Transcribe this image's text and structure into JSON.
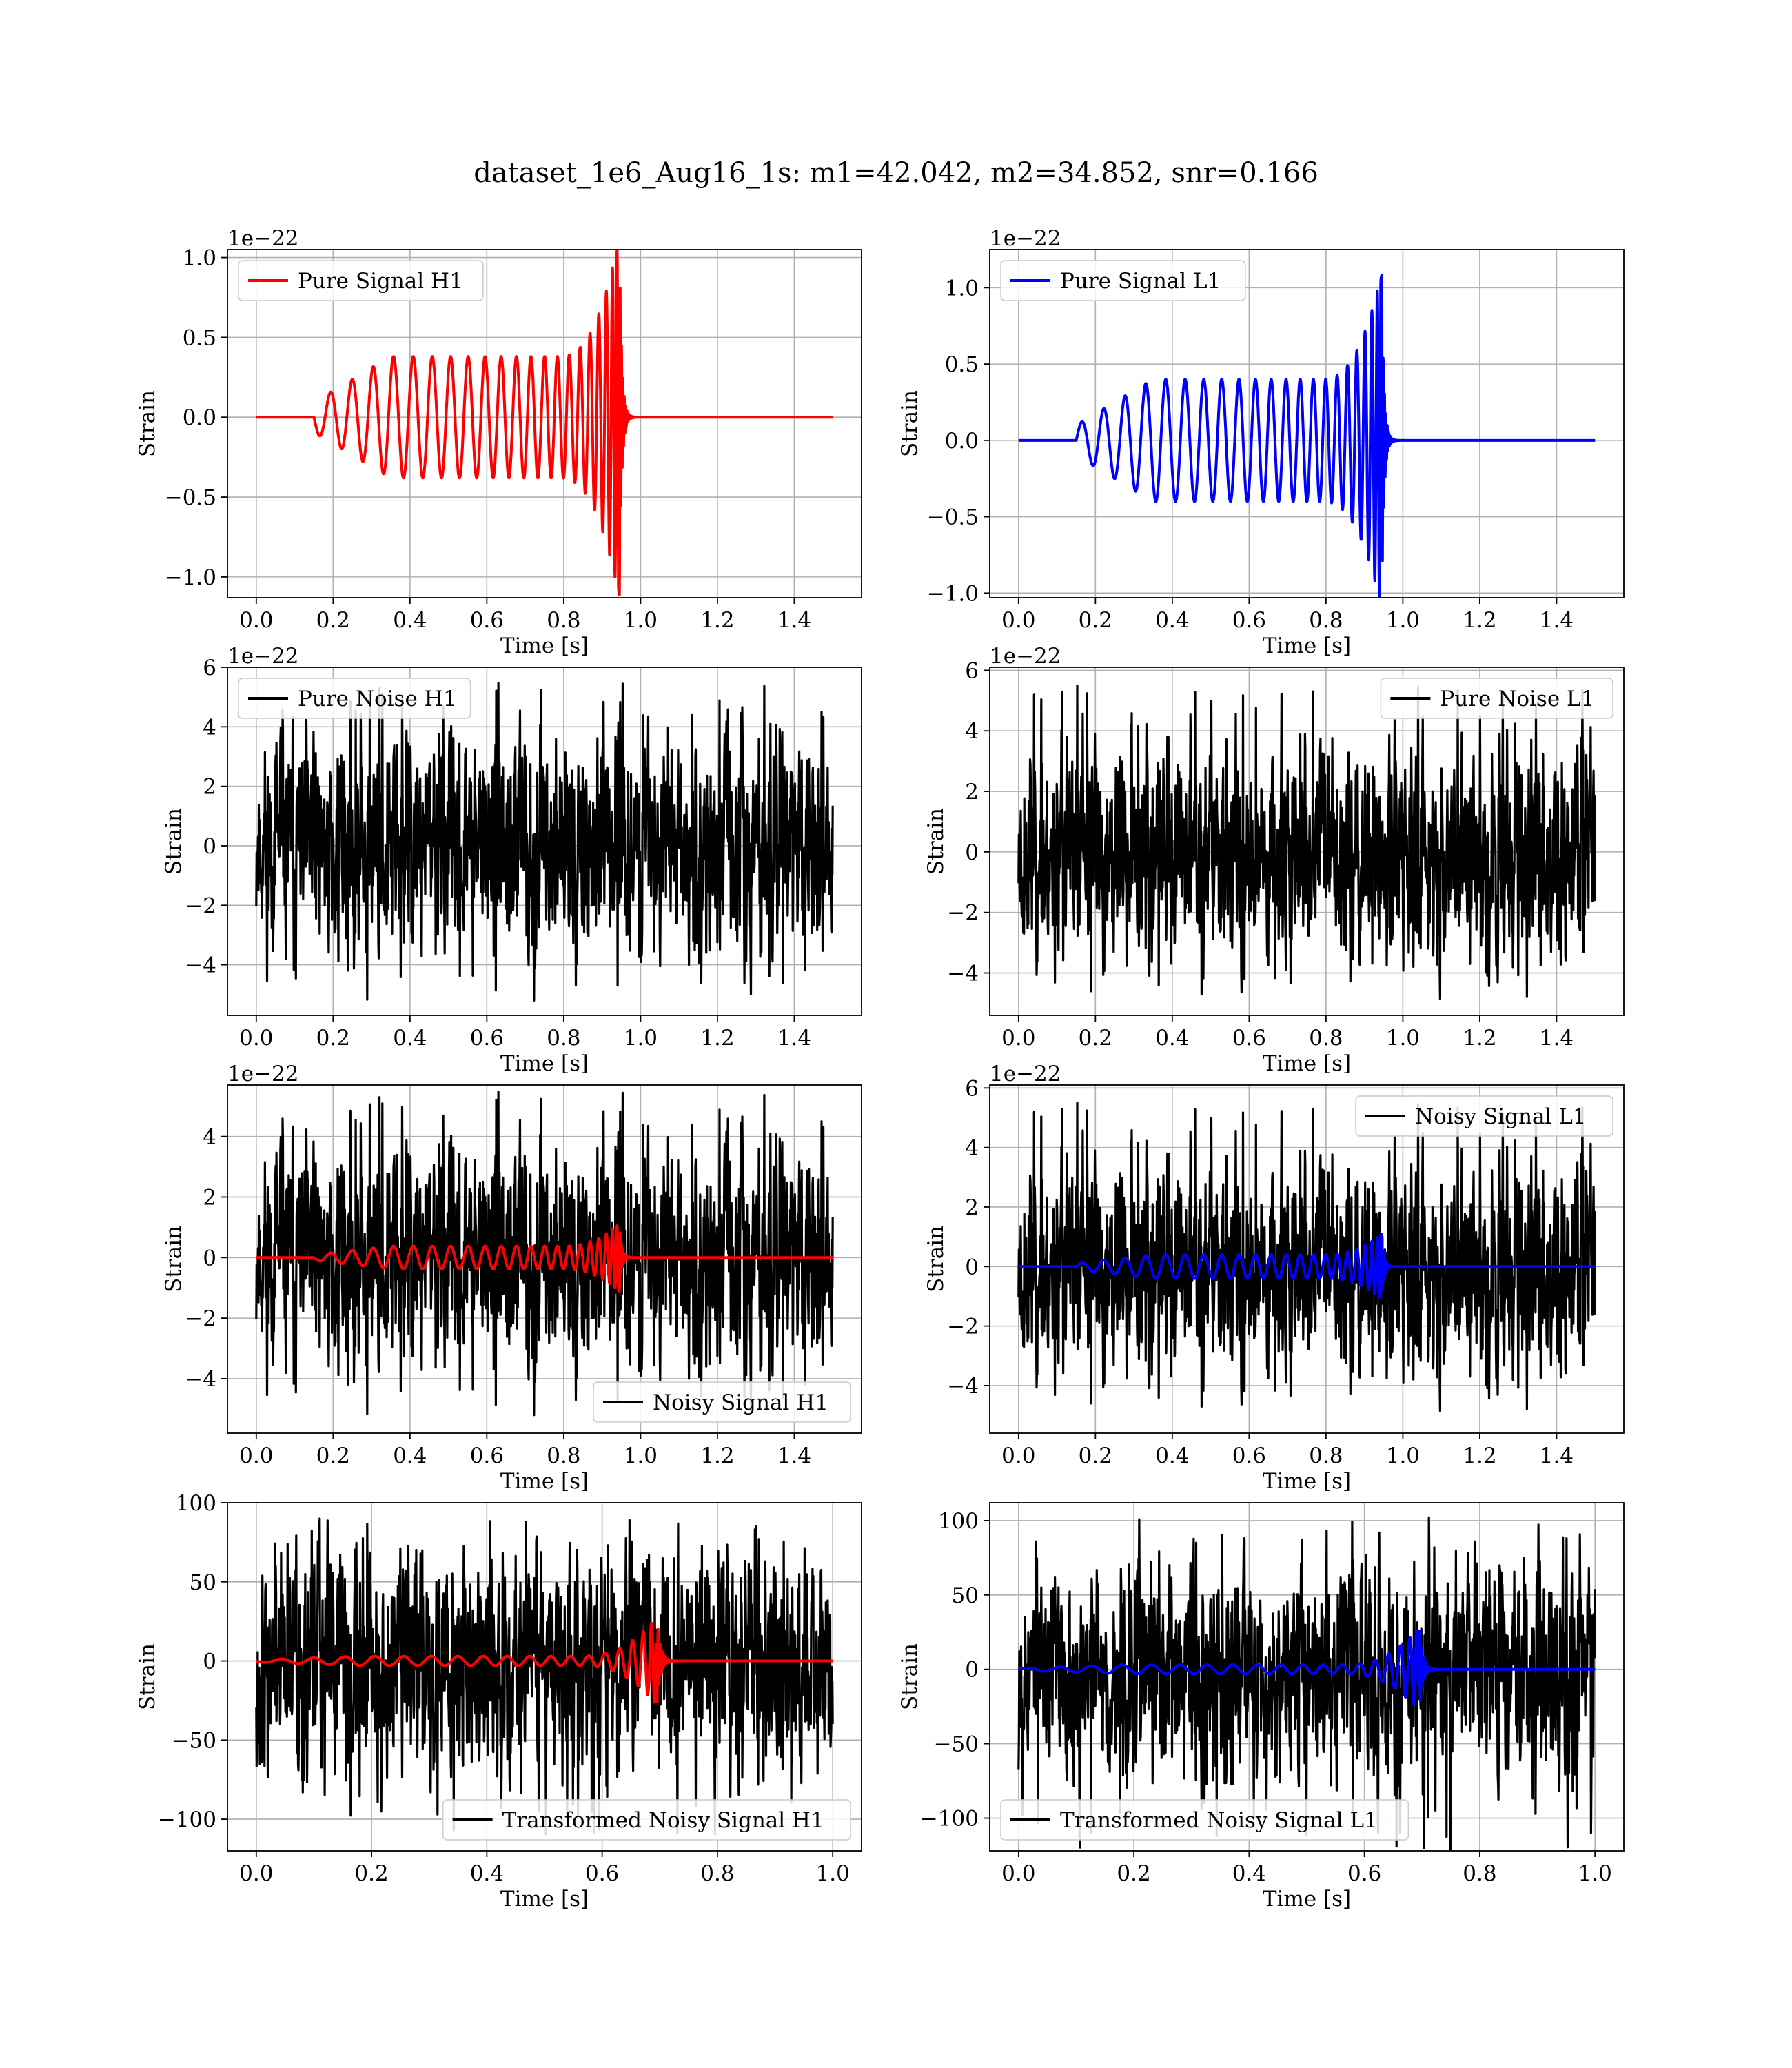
{
  "suptitle": "dataset_1e6_Aug16_1s: m1=42.042, m2=34.852, snr=0.166",
  "colors": {
    "h1_signal": "#ff0000",
    "l1_signal": "#0000ff",
    "noise": "#000000",
    "grid": "#b0b0b0"
  },
  "chart_data": [
    {
      "type": "line",
      "xlabel": "Time [s]",
      "ylabel": "Strain",
      "offset_text": "1e−22",
      "xlim": [
        -0.075,
        1.575
      ],
      "ylim": [
        -1.13,
        1.05
      ],
      "xticks": [
        0.0,
        0.2,
        0.4,
        0.6,
        0.8,
        1.0,
        1.2,
        1.4
      ],
      "xtick_labels": [
        "0.0",
        "0.2",
        "0.4",
        "0.6",
        "0.8",
        "1.0",
        "1.2",
        "1.4"
      ],
      "yticks": [
        -1.0,
        -0.5,
        0.0,
        0.5,
        1.0
      ],
      "ytick_labels": [
        "−1.0",
        "−0.5",
        "0.0",
        "0.5",
        "1.0"
      ],
      "legend_loc": "upper-left",
      "grid": true,
      "series": [
        {
          "name": "Pure Signal H1",
          "kind": "chirp",
          "color": "#ff0000",
          "t_start": 0.15,
          "t_merge": 0.945,
          "t_end": 1.5,
          "peak_amp": 1.13,
          "inspiral_amp": 0.38,
          "sign": -1
        }
      ]
    },
    {
      "type": "line",
      "xlabel": "Time [s]",
      "ylabel": "Strain",
      "offset_text": "1e−22",
      "xlim": [
        -0.075,
        1.575
      ],
      "ylim": [
        -1.03,
        1.25
      ],
      "xticks": [
        0.0,
        0.2,
        0.4,
        0.6,
        0.8,
        1.0,
        1.2,
        1.4
      ],
      "xtick_labels": [
        "0.0",
        "0.2",
        "0.4",
        "0.6",
        "0.8",
        "1.0",
        "1.2",
        "1.4"
      ],
      "yticks": [
        -1.0,
        -0.5,
        0.0,
        0.5,
        1.0
      ],
      "ytick_labels": [
        "−1.0",
        "−0.5",
        "0.0",
        "0.5",
        "1.0"
      ],
      "legend_loc": "upper-left",
      "grid": true,
      "series": [
        {
          "name": "Pure Signal L1",
          "kind": "chirp",
          "color": "#0000ff",
          "t_start": 0.15,
          "t_merge": 0.945,
          "t_end": 1.5,
          "peak_amp": 1.1,
          "inspiral_amp": 0.4,
          "sign": 1
        }
      ]
    },
    {
      "type": "line",
      "xlabel": "Time [s]",
      "ylabel": "Strain",
      "offset_text": "1e−22",
      "xlim": [
        -0.075,
        1.575
      ],
      "ylim": [
        -5.7,
        6.0
      ],
      "xticks": [
        0.0,
        0.2,
        0.4,
        0.6,
        0.8,
        1.0,
        1.2,
        1.4
      ],
      "xtick_labels": [
        "0.0",
        "0.2",
        "0.4",
        "0.6",
        "0.8",
        "1.0",
        "1.2",
        "1.4"
      ],
      "yticks": [
        -4,
        -2,
        0,
        2,
        4,
        6
      ],
      "ytick_labels": [
        "−4",
        "−2",
        "0",
        "2",
        "4",
        "6"
      ],
      "legend_loc": "upper-left",
      "grid": true,
      "series": [
        {
          "name": "Pure Noise H1",
          "kind": "noise",
          "color": "#000000",
          "t_start": 0.0,
          "t_end": 1.5,
          "noise_amp": 1.6,
          "min": -5.2,
          "max": 5.5,
          "seed": 11
        }
      ]
    },
    {
      "type": "line",
      "xlabel": "Time [s]",
      "ylabel": "Strain",
      "offset_text": "1e−22",
      "xlim": [
        -0.075,
        1.575
      ],
      "ylim": [
        -5.4,
        6.1
      ],
      "xticks": [
        0.0,
        0.2,
        0.4,
        0.6,
        0.8,
        1.0,
        1.2,
        1.4
      ],
      "xtick_labels": [
        "0.0",
        "0.2",
        "0.4",
        "0.6",
        "0.8",
        "1.0",
        "1.2",
        "1.4"
      ],
      "yticks": [
        -4,
        -2,
        0,
        2,
        4,
        6
      ],
      "ytick_labels": [
        "−4",
        "−2",
        "0",
        "2",
        "4",
        "6"
      ],
      "legend_loc": "upper-right",
      "grid": true,
      "series": [
        {
          "name": "Pure Noise L1",
          "kind": "noise",
          "color": "#000000",
          "t_start": 0.0,
          "t_end": 1.5,
          "noise_amp": 1.6,
          "min": -4.9,
          "max": 5.5,
          "seed": 23
        }
      ]
    },
    {
      "type": "line",
      "xlabel": "Time [s]",
      "ylabel": "Strain",
      "offset_text": "1e−22",
      "xlim": [
        -0.075,
        1.575
      ],
      "ylim": [
        -5.8,
        5.7
      ],
      "xticks": [
        0.0,
        0.2,
        0.4,
        0.6,
        0.8,
        1.0,
        1.2,
        1.4
      ],
      "xtick_labels": [
        "0.0",
        "0.2",
        "0.4",
        "0.6",
        "0.8",
        "1.0",
        "1.2",
        "1.4"
      ],
      "yticks": [
        -4,
        -2,
        0,
        2,
        4
      ],
      "ytick_labels": [
        "−4",
        "−2",
        "0",
        "2",
        "4"
      ],
      "legend_loc": "lower-right",
      "grid": true,
      "series": [
        {
          "name": "Noisy Signal H1",
          "kind": "noise",
          "color": "#000000",
          "t_start": 0.0,
          "t_end": 1.5,
          "noise_amp": 1.6,
          "min": -5.2,
          "max": 5.5,
          "seed": 11
        },
        {
          "name": "",
          "kind": "chirp",
          "color": "#ff0000",
          "t_start": 0.15,
          "t_merge": 0.945,
          "t_end": 1.5,
          "peak_amp": 1.13,
          "inspiral_amp": 0.38,
          "sign": -1
        }
      ]
    },
    {
      "type": "line",
      "xlabel": "Time [s]",
      "ylabel": "Strain",
      "offset_text": "1e−22",
      "xlim": [
        -0.075,
        1.575
      ],
      "ylim": [
        -5.6,
        6.1
      ],
      "xticks": [
        0.0,
        0.2,
        0.4,
        0.6,
        0.8,
        1.0,
        1.2,
        1.4
      ],
      "xtick_labels": [
        "0.0",
        "0.2",
        "0.4",
        "0.6",
        "0.8",
        "1.0",
        "1.2",
        "1.4"
      ],
      "yticks": [
        -4,
        -2,
        0,
        2,
        4,
        6
      ],
      "ytick_labels": [
        "−4",
        "−2",
        "0",
        "2",
        "4",
        "6"
      ],
      "legend_loc": "upper-right",
      "grid": true,
      "series": [
        {
          "name": "Noisy Signal L1",
          "kind": "noise",
          "color": "#000000",
          "t_start": 0.0,
          "t_end": 1.5,
          "noise_amp": 1.6,
          "min": -4.9,
          "max": 5.5,
          "seed": 23
        },
        {
          "name": "",
          "kind": "chirp",
          "color": "#0000ff",
          "t_start": 0.15,
          "t_merge": 0.945,
          "t_end": 1.5,
          "peak_amp": 1.1,
          "inspiral_amp": 0.4,
          "sign": 1
        }
      ]
    },
    {
      "type": "line",
      "xlabel": "Time [s]",
      "ylabel": "Strain",
      "offset_text": "",
      "xlim": [
        -0.05,
        1.05
      ],
      "ylim": [
        -120,
        100
      ],
      "xticks": [
        0.0,
        0.2,
        0.4,
        0.6,
        0.8,
        1.0
      ],
      "xtick_labels": [
        "0.0",
        "0.2",
        "0.4",
        "0.6",
        "0.8",
        "1.0"
      ],
      "yticks": [
        -100,
        -50,
        0,
        50,
        100
      ],
      "ytick_labels": [
        "−100",
        "−50",
        "0",
        "50",
        "100"
      ],
      "legend_loc": "lower-right",
      "grid": true,
      "series": [
        {
          "name": "Transformed Noisy Signal H1",
          "kind": "noise",
          "color": "#000000",
          "t_start": 0.0,
          "t_end": 1.0,
          "noise_amp": 32,
          "min": -110,
          "max": 90,
          "seed": 37
        },
        {
          "name": "",
          "kind": "chirp",
          "color": "#ff0000",
          "t_start": 0.0,
          "t_merge": 0.695,
          "t_end": 1.0,
          "peak_amp": 28,
          "inspiral_amp": 3,
          "sign": -1
        }
      ]
    },
    {
      "type": "line",
      "xlabel": "Time [s]",
      "ylabel": "Strain",
      "offset_text": "",
      "xlim": [
        -0.05,
        1.05
      ],
      "ylim": [
        -122,
        112
      ],
      "xticks": [
        0.0,
        0.2,
        0.4,
        0.6,
        0.8,
        1.0
      ],
      "xtick_labels": [
        "0.0",
        "0.2",
        "0.4",
        "0.6",
        "0.8",
        "1.0"
      ],
      "yticks": [
        -100,
        -50,
        0,
        50,
        100
      ],
      "ytick_labels": [
        "−100",
        "−50",
        "0",
        "50",
        "100"
      ],
      "legend_loc": "lower-left",
      "grid": true,
      "series": [
        {
          "name": "Transformed Noisy Signal L1",
          "kind": "noise",
          "color": "#000000",
          "t_start": 0.0,
          "t_end": 1.0,
          "noise_amp": 32,
          "min": -122,
          "max": 105,
          "seed": 53
        },
        {
          "name": "",
          "kind": "chirp",
          "color": "#0000ff",
          "t_start": 0.0,
          "t_merge": 0.695,
          "t_end": 1.0,
          "peak_amp": 28,
          "inspiral_amp": 3,
          "sign": 1
        }
      ]
    }
  ]
}
